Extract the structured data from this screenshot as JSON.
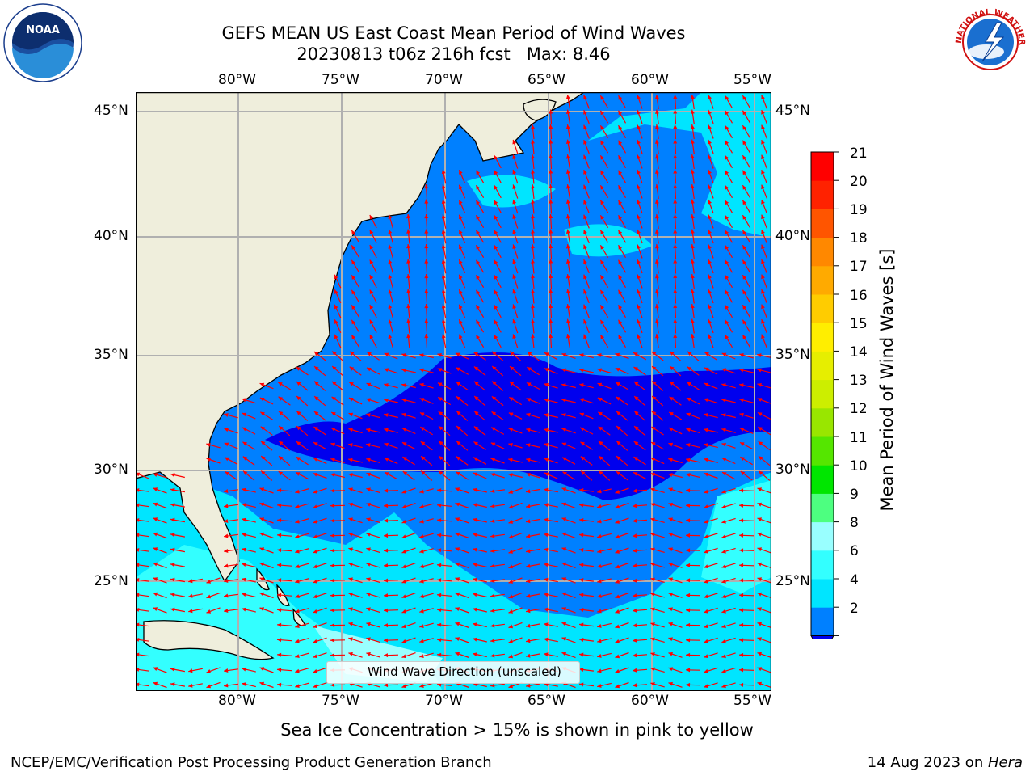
{
  "header": {
    "title_line1": "GEFS MEAN US East Coast Mean Period of Wind Waves",
    "title_line2": "20230813 t06z 216h fcst   Max: 8.46"
  },
  "logos": {
    "left": {
      "icon": "noaa-logo",
      "text": "NOAA"
    },
    "right": {
      "icon": "nws-logo",
      "ring_text": "NATIONAL WEATHER SERVICE"
    }
  },
  "map": {
    "lon_labels": [
      "80°W",
      "75°W",
      "70°W",
      "65°W",
      "60°W",
      "55°W"
    ],
    "lat_labels": [
      "45°N",
      "40°N",
      "35°N",
      "30°N",
      "25°N"
    ],
    "land_color": "#efeedc",
    "arrow_color": "#ff0000",
    "legend_label": "Wind Wave Direction (unscaled)"
  },
  "colorbar": {
    "label": "Mean Period of Wind Waves [s]",
    "ticks": [
      "21",
      "20",
      "19",
      "18",
      "17",
      "16",
      "15",
      "14",
      "13",
      "12",
      "11",
      "10",
      "9",
      "8",
      "6",
      "4",
      "2"
    ],
    "colors_bottom_to_top": [
      "#0080ff",
      "#00e5ff",
      "#33ffff",
      "#99ffff",
      "#4dff80",
      "#00e600",
      "#55e600",
      "#99e600",
      "#ccee00",
      "#e6ee00",
      "#ffee00",
      "#ffcc00",
      "#ffaa00",
      "#ff8800",
      "#ff5500",
      "#ff2200",
      "#ff0000"
    ],
    "under_color": "#0000ee"
  },
  "footer": {
    "note": "Sea Ice Concentration > 15% is shown in pink to yellow",
    "credit": "NCEP/EMC/Verification Post Processing Product Generation Branch",
    "date": "14 Aug 2023 on ",
    "host": "Hera"
  }
}
